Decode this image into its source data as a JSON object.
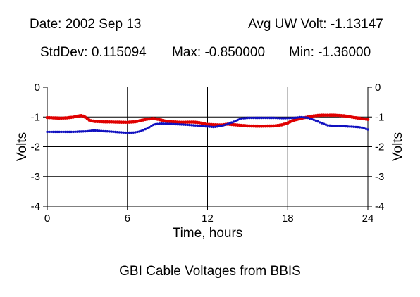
{
  "header": {
    "date": "Date: 2002 Sep 13",
    "avg": "Avg UW Volt: -1.13147",
    "stddev": "StdDev: 0.115094",
    "max": "Max: -0.850000",
    "min": "Min: -1.36000"
  },
  "chart_data": {
    "type": "scatter",
    "title": "GBI Cable Voltages from BBIS",
    "xlabel": "Time, hours",
    "ylabel": "Volts",
    "ylabel_right": "Volts",
    "xlim": [
      0,
      24
    ],
    "ylim": [
      -4,
      0
    ],
    "xticks": [
      0,
      6,
      12,
      18,
      24
    ],
    "yticks": [
      0,
      -1,
      -2,
      -3,
      -4
    ],
    "grid": true,
    "colors": {
      "red": "#e00000",
      "blue": "#1010c0"
    },
    "series": [
      {
        "color": "red",
        "x": [
          0,
          0.5,
          1,
          1.5,
          2,
          2.3,
          2.6,
          2.9,
          3.2,
          3.6,
          4,
          5,
          6,
          6.6,
          7,
          7.5,
          8,
          8.5,
          9,
          10,
          11,
          11.5,
          12,
          12.5,
          13,
          13.5,
          14,
          15,
          16,
          17,
          17.5,
          18,
          18.5,
          19,
          19.5,
          20,
          20.5,
          21,
          21.5,
          22,
          22.5,
          23,
          23.5,
          24
        ],
        "y": [
          -1.02,
          -1.03,
          -1.04,
          -1.03,
          -1.0,
          -0.97,
          -0.95,
          -1.02,
          -1.12,
          -1.15,
          -1.16,
          -1.17,
          -1.18,
          -1.16,
          -1.12,
          -1.07,
          -1.05,
          -1.1,
          -1.15,
          -1.18,
          -1.17,
          -1.2,
          -1.25,
          -1.26,
          -1.27,
          -1.24,
          -1.26,
          -1.3,
          -1.31,
          -1.3,
          -1.27,
          -1.2,
          -1.1,
          -1.05,
          -1.0,
          -0.96,
          -0.94,
          -0.94,
          -0.94,
          -0.95,
          -0.98,
          -1.02,
          -1.05,
          -1.08
        ]
      },
      {
        "color": "blue",
        "x": [
          0,
          1,
          2,
          3,
          3.5,
          4,
          5,
          6,
          6.5,
          7,
          7.5,
          8,
          8.5,
          9,
          10,
          11,
          12,
          12.5,
          13,
          13.5,
          14,
          14.5,
          15,
          16,
          17,
          17.5,
          18,
          18.5,
          19,
          19.5,
          20,
          20.5,
          21,
          21.5,
          22,
          22.5,
          23,
          23.5,
          24
        ],
        "y": [
          -1.5,
          -1.5,
          -1.5,
          -1.48,
          -1.45,
          -1.47,
          -1.5,
          -1.53,
          -1.52,
          -1.48,
          -1.38,
          -1.25,
          -1.22,
          -1.23,
          -1.25,
          -1.28,
          -1.32,
          -1.34,
          -1.3,
          -1.24,
          -1.15,
          -1.05,
          -1.03,
          -1.03,
          -1.03,
          -1.04,
          -1.04,
          -1.03,
          -1.0,
          -1.03,
          -1.1,
          -1.2,
          -1.28,
          -1.3,
          -1.3,
          -1.32,
          -1.33,
          -1.35,
          -1.42
        ]
      }
    ]
  }
}
